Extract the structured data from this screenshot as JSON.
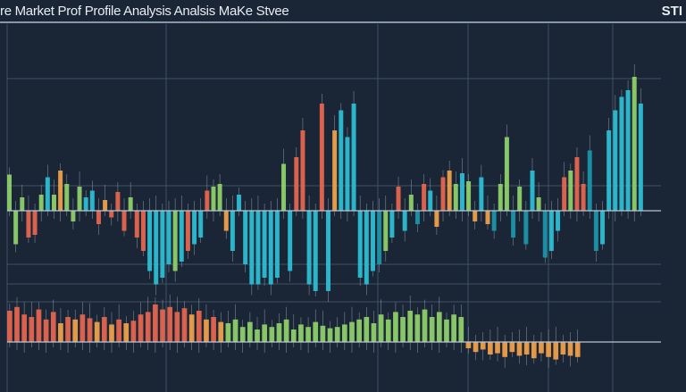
{
  "title": "re Market Prof Profile Analysis Analsis MaKe Stvee",
  "corner_label": "STI",
  "colors": {
    "background": "#1a2635",
    "green": "#8fd16a",
    "cyan": "#2bbfd6",
    "teal": "#1b95aa",
    "red": "#e8664f",
    "orange": "#f2a24a",
    "grid": "#3f5266"
  },
  "chart_data": [
    {
      "type": "bar",
      "panel": "upper",
      "grid": true,
      "ylim": [
        -55,
        100
      ],
      "values": [
        27,
        -25,
        10,
        -20,
        -18,
        12,
        25,
        12,
        30,
        20,
        -8,
        18,
        10,
        15,
        -10,
        8,
        -5,
        14,
        -15,
        10,
        -20,
        -30,
        -45,
        -55,
        -50,
        -40,
        -45,
        -38,
        -30,
        -25,
        -20,
        15,
        18,
        20,
        -15,
        -30,
        12,
        -40,
        -55,
        -55,
        -50,
        -55,
        -50,
        35,
        -45,
        40,
        60,
        -55,
        -60,
        80,
        -60,
        60,
        75,
        55,
        80,
        -50,
        -55,
        -45,
        -40,
        -30,
        -20,
        18,
        -15,
        12,
        -10,
        20,
        15,
        -12,
        25,
        30,
        20,
        28,
        22,
        -8,
        25,
        -10,
        -15,
        20,
        55,
        -20,
        18,
        -25,
        30,
        10,
        -35,
        -30,
        -15,
        25,
        30,
        40,
        20,
        45,
        -30,
        -25,
        60,
        75,
        85,
        90,
        100,
        80
      ],
      "colors": [
        "g",
        "g",
        "g",
        "r",
        "r",
        "g",
        "c",
        "g",
        "o",
        "g",
        "g",
        "g",
        "c",
        "c",
        "r",
        "o",
        "r",
        "r",
        "r",
        "g",
        "r",
        "r",
        "c",
        "c",
        "c",
        "c",
        "g",
        "c",
        "r",
        "c",
        "c",
        "r",
        "g",
        "g",
        "o",
        "c",
        "c",
        "c",
        "c",
        "c",
        "c",
        "c",
        "c",
        "g",
        "c",
        "r",
        "r",
        "c",
        "c",
        "r",
        "c",
        "o",
        "c",
        "c",
        "c",
        "c",
        "c",
        "c",
        "t",
        "g",
        "c",
        "r",
        "c",
        "g",
        "t",
        "r",
        "c",
        "o",
        "r",
        "o",
        "g",
        "c",
        "g",
        "o",
        "c",
        "o",
        "t",
        "g",
        "g",
        "t",
        "g",
        "t",
        "c",
        "g",
        "t",
        "c",
        "c",
        "r",
        "g",
        "r",
        "r",
        "t",
        "t",
        "c",
        "c",
        "c",
        "c",
        "c",
        "g",
        "c"
      ]
    },
    {
      "type": "bar",
      "panel": "lower",
      "grid": true,
      "ylim": [
        -15,
        30
      ],
      "values": [
        25,
        28,
        22,
        20,
        26,
        18,
        24,
        15,
        20,
        18,
        22,
        19,
        16,
        20,
        14,
        18,
        15,
        17,
        22,
        24,
        30,
        26,
        28,
        24,
        27,
        22,
        25,
        18,
        20,
        16,
        15,
        18,
        12,
        16,
        10,
        14,
        12,
        15,
        18,
        10,
        14,
        12,
        16,
        13,
        11,
        12,
        14,
        16,
        18,
        20,
        15,
        22,
        18,
        24,
        20,
        25,
        22,
        26,
        20,
        24,
        18,
        22,
        20,
        -5,
        -8,
        -6,
        -10,
        -9,
        -12,
        -8,
        -11,
        -10,
        -13,
        -9,
        -12,
        -14,
        -10,
        -11,
        -12
      ],
      "colors": [
        "r",
        "r",
        "r",
        "r",
        "r",
        "r",
        "r",
        "o",
        "r",
        "o",
        "r",
        "r",
        "o",
        "r",
        "o",
        "r",
        "o",
        "r",
        "r",
        "r",
        "r",
        "r",
        "r",
        "r",
        "r",
        "o",
        "r",
        "o",
        "r",
        "o",
        "g",
        "g",
        "g",
        "g",
        "g",
        "g",
        "g",
        "g",
        "g",
        "g",
        "g",
        "g",
        "g",
        "g",
        "g",
        "g",
        "g",
        "g",
        "g",
        "g",
        "g",
        "g",
        "g",
        "g",
        "g",
        "g",
        "g",
        "g",
        "g",
        "g",
        "g",
        "g",
        "g",
        "o",
        "o",
        "o",
        "o",
        "o",
        "o",
        "o",
        "o",
        "o",
        "o",
        "o",
        "o",
        "o",
        "o",
        "o",
        "o"
      ]
    }
  ]
}
